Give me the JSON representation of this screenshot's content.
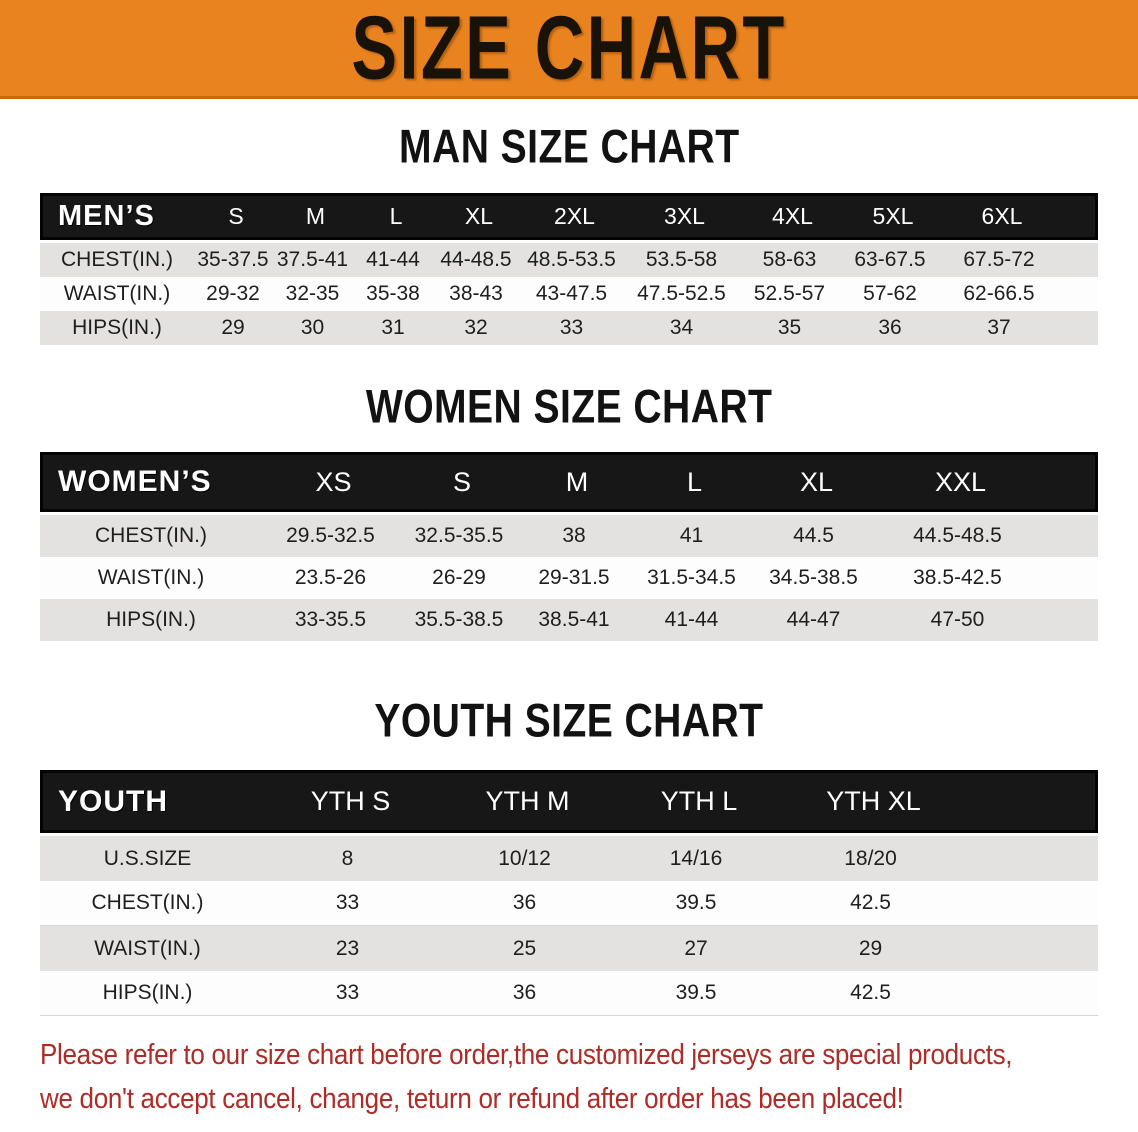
{
  "banner": {
    "title": "SIZE CHART"
  },
  "sections": [
    {
      "id": "men",
      "title": "MAN SIZE CHART",
      "header_label": "MEN’S",
      "columns": [
        "S",
        "M",
        "L",
        "XL",
        "2XL",
        "3XL",
        "4XL",
        "5XL",
        "6XL"
      ],
      "rows": [
        {
          "label": "CHEST(IN.)",
          "values": [
            "35-37.5",
            "37.5-41",
            "41-44",
            "44-48.5",
            "48.5-53.5",
            "53.5-58",
            "58-63",
            "63-67.5",
            "67.5-72"
          ]
        },
        {
          "label": "WAIST(IN.)",
          "values": [
            "29-32",
            "32-35",
            "35-38",
            "38-43",
            "43-47.5",
            "47.5-52.5",
            "52.5-57",
            "57-62",
            "62-66.5"
          ]
        },
        {
          "label": "HIPS(IN.)",
          "values": [
            "29",
            "30",
            "31",
            "32",
            "33",
            "34",
            "35",
            "36",
            "37"
          ]
        }
      ]
    },
    {
      "id": "women",
      "title": "WOMEN SIZE CHART",
      "header_label": "WOMEN’S",
      "columns": [
        "XS",
        "S",
        "M",
        "L",
        "XL",
        "XXL"
      ],
      "rows": [
        {
          "label": "CHEST(IN.)",
          "values": [
            "29.5-32.5",
            "32.5-35.5",
            "38",
            "41",
            "44.5",
            "44.5-48.5"
          ]
        },
        {
          "label": "WAIST(IN.)",
          "values": [
            "23.5-26",
            "26-29",
            "29-31.5",
            "31.5-34.5",
            "34.5-38.5",
            "38.5-42.5"
          ]
        },
        {
          "label": "HIPS(IN.)",
          "values": [
            "33-35.5",
            "35.5-38.5",
            "38.5-41",
            "41-44",
            "44-47",
            "47-50"
          ]
        }
      ]
    },
    {
      "id": "youth",
      "title": "YOUTH SIZE CHART",
      "header_label": "YOUTH",
      "columns": [
        "YTH S",
        "YTH M",
        "YTH L",
        "YTH XL"
      ],
      "rows": [
        {
          "label": "U.S.SIZE",
          "values": [
            "8",
            "10/12",
            "14/16",
            "18/20"
          ]
        },
        {
          "label": "CHEST(IN.)",
          "values": [
            "33",
            "36",
            "39.5",
            "42.5"
          ]
        },
        {
          "label": "WAIST(IN.)",
          "values": [
            "23",
            "25",
            "27",
            "29"
          ]
        },
        {
          "label": "HIPS(IN.)",
          "values": [
            "33",
            "36",
            "39.5",
            "42.5"
          ]
        }
      ]
    }
  ],
  "footer": {
    "line1": "Please refer to our size chart before order,the customized jerseys are special products,",
    "line2": "we don't accept cancel, change, teturn or refund after order has been placed!",
    "text_color": "#AF2B25"
  },
  "colors": {
    "banner_bg": "#E8831F",
    "banner_border": "#C26A10",
    "header_band_bg": "#171717",
    "stripe_gray": "#e3e2e0",
    "stripe_white": "#fdfdfd"
  }
}
